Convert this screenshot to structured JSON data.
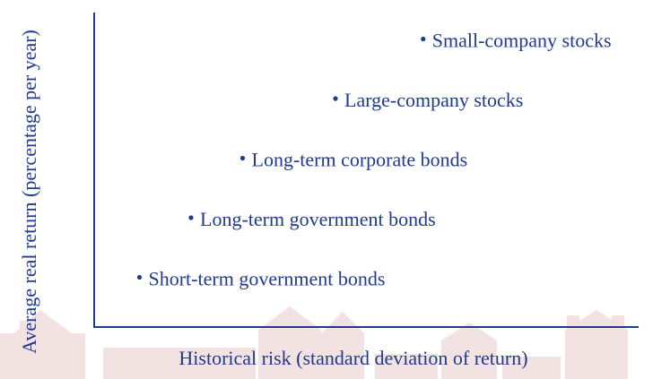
{
  "chart_data": {
    "type": "scatter",
    "title": "",
    "xlabel": "Historical risk (standard deviation of return)",
    "ylabel": "Average real return (percentage per year)",
    "grid": false,
    "legend": "none",
    "points": [
      {
        "label": "Short-term government bonds",
        "x": 1.0,
        "y": 1.0
      },
      {
        "label": "Long-term government bonds",
        "x": 2.0,
        "y": 2.0
      },
      {
        "label": "Long-term corporate bonds",
        "x": 3.0,
        "y": 3.0
      },
      {
        "label": "Large-company stocks",
        "x": 4.8,
        "y": 4.0
      },
      {
        "label": "Small-company stocks",
        "x": 6.5,
        "y": 5.0
      }
    ],
    "colors": {
      "marks": "#1f3a8f",
      "axis": "#1f3a8f",
      "watermark": "#c98080"
    }
  }
}
